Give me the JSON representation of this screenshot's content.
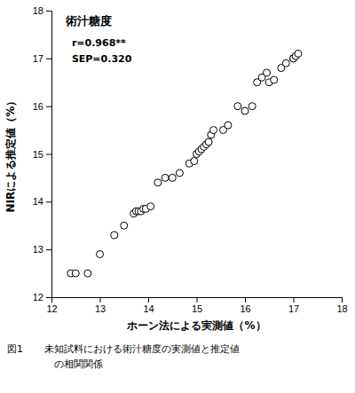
{
  "chart_data": {
    "type": "scatter",
    "title": "術汁糖度",
    "xlabel": "ホーン法による実測値（%）",
    "ylabel": "NIRによる推定値（%）",
    "annotations": [
      "r=0.968**",
      "SEP=0.320"
    ],
    "figure_label": "図1",
    "caption": "未知試料における術汁糖度の実測値と推定値\n　の相関関係",
    "x": [
      12.4,
      12.5,
      12.75,
      13.0,
      13.3,
      13.5,
      13.7,
      13.75,
      13.8,
      13.85,
      13.9,
      13.95,
      14.05,
      14.2,
      14.35,
      14.5,
      14.65,
      14.85,
      14.95,
      15.0,
      15.05,
      15.1,
      15.15,
      15.2,
      15.25,
      15.3,
      15.35,
      15.55,
      15.65,
      15.85,
      16.0,
      16.15,
      16.25,
      16.35,
      16.45,
      16.5,
      16.6,
      16.75,
      16.85,
      17.0,
      17.0,
      17.05,
      17.1
    ],
    "values": [
      12.5,
      12.5,
      12.5,
      12.9,
      13.3,
      13.5,
      13.75,
      13.8,
      13.8,
      13.8,
      13.85,
      13.85,
      13.9,
      14.4,
      14.5,
      14.5,
      14.6,
      14.8,
      14.85,
      15.0,
      15.05,
      15.1,
      15.15,
      15.2,
      15.25,
      15.4,
      15.5,
      15.5,
      15.6,
      16.0,
      15.9,
      16.0,
      16.5,
      16.6,
      16.7,
      16.5,
      16.55,
      16.8,
      16.9,
      17.0,
      17.0,
      17.05,
      17.1
    ],
    "xlim": [
      12,
      18
    ],
    "ylim": [
      12,
      18
    ],
    "xticks": [
      12,
      13,
      14,
      15,
      16,
      17,
      18
    ],
    "yticks": [
      12,
      13,
      14,
      15,
      16,
      17,
      18
    ],
    "color": "black",
    "marker": "open-circle",
    "grid": false
  }
}
